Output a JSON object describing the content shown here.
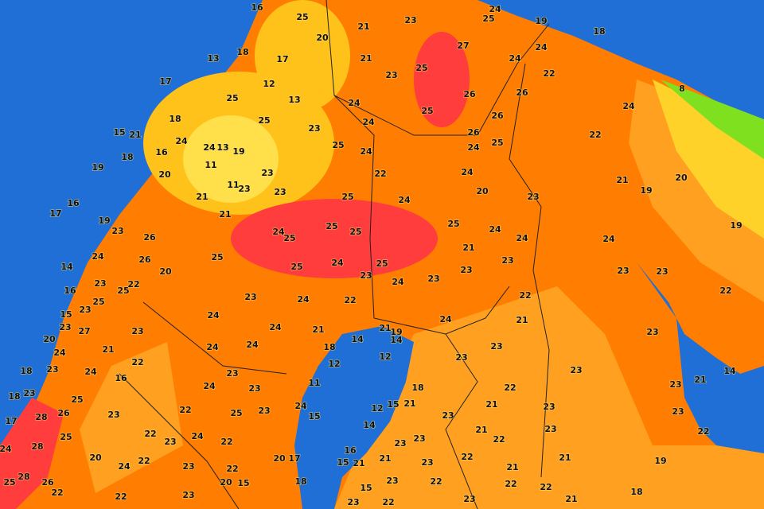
{
  "map": {
    "temperatures": [
      16,
      25,
      20,
      21,
      23,
      25,
      24,
      19,
      18,
      18,
      13,
      17,
      12,
      13,
      21,
      23,
      25,
      27,
      24,
      24,
      22,
      24,
      8,
      17,
      25,
      25,
      24,
      24,
      25,
      26,
      26,
      26,
      15,
      21,
      18,
      24,
      24,
      13,
      19,
      16,
      18,
      19,
      20,
      11,
      11,
      23,
      23,
      23,
      25,
      24,
      22,
      26,
      24,
      25,
      22,
      17,
      16,
      19,
      23,
      26,
      26,
      21,
      21,
      23,
      25,
      24,
      24,
      20,
      23,
      21,
      19,
      20,
      19,
      14,
      24,
      25,
      24,
      25,
      25,
      25,
      25,
      24,
      21,
      24,
      24,
      16,
      23,
      25,
      22,
      20,
      25,
      24,
      25,
      23,
      24,
      23,
      23,
      23,
      23,
      23,
      22,
      25,
      15,
      23,
      20,
      23,
      27,
      23,
      21,
      24,
      23,
      24,
      22,
      24,
      21,
      21,
      19,
      14,
      24,
      22,
      21,
      23,
      24,
      18,
      23,
      24,
      22,
      16,
      24,
      24,
      18,
      14,
      12,
      12,
      23,
      23,
      23,
      14,
      21,
      18,
      23,
      25,
      24,
      23,
      23,
      11,
      18,
      22,
      23,
      17,
      28,
      26,
      23,
      22,
      25,
      23,
      24,
      15,
      12,
      15,
      21,
      23,
      21,
      23,
      23,
      24,
      28,
      25,
      22,
      24,
      23,
      22,
      14,
      23,
      23,
      21,
      22,
      23,
      22,
      20,
      24,
      22,
      23,
      22,
      20,
      17,
      16,
      15,
      21,
      21,
      23,
      22,
      21,
      21,
      19,
      25,
      28,
      26,
      22,
      20,
      15,
      18,
      23,
      22,
      22,
      22,
      18,
      22,
      23,
      15,
      23,
      22,
      23,
      21
    ]
  }
}
